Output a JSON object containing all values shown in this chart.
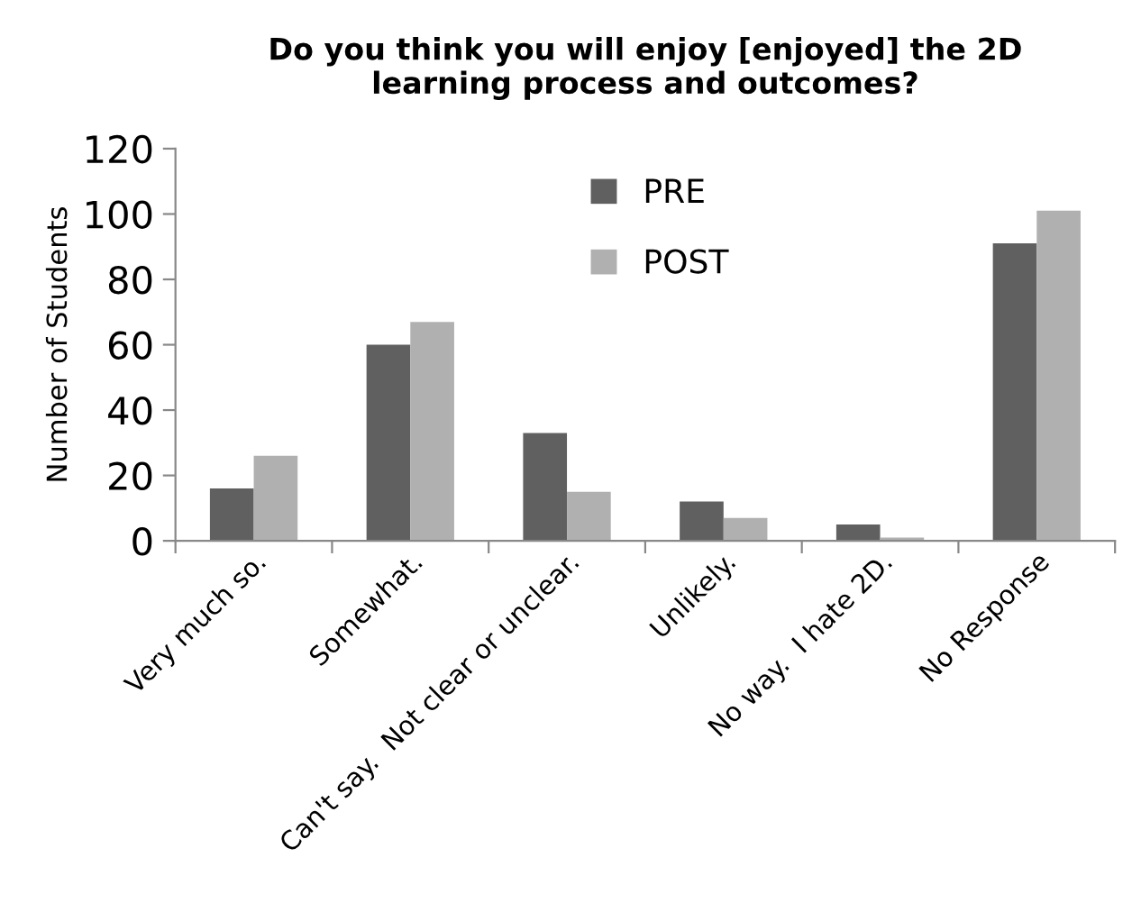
{
  "chart_data": {
    "type": "bar",
    "title": "Do you think you will enjoy [enjoyed] the 2D\nlearning process and outcomes?",
    "ylabel": "Number of Students",
    "categories": [
      "Very much so.",
      "Somewhat.",
      "Can't say.  Not clear or unclear.",
      "Unlikely.",
      "No way.  I hate 2D.",
      "No Response"
    ],
    "series": [
      {
        "name": "PRE",
        "color": "#606060",
        "values": [
          16,
          60,
          33,
          12,
          5,
          91
        ]
      },
      {
        "name": "POST",
        "color": "#b0b0b0",
        "values": [
          26,
          67,
          15,
          7,
          1,
          101
        ]
      }
    ],
    "ylim": [
      0,
      120
    ],
    "yticks": [
      0,
      20,
      40,
      60,
      80,
      100,
      120
    ],
    "grid": false,
    "legend": "top right"
  }
}
